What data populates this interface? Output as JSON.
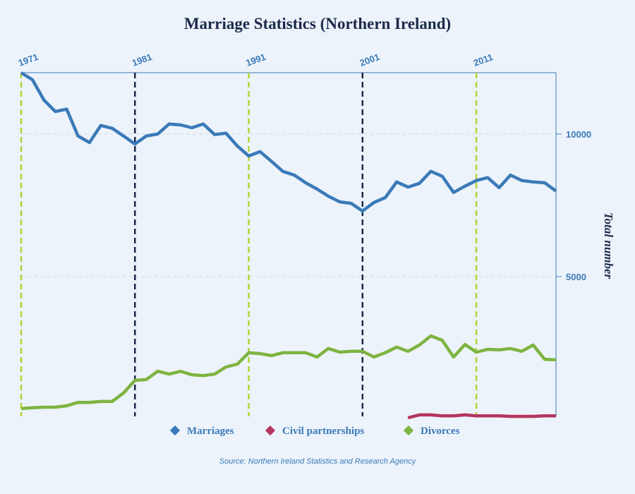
{
  "chart_data": {
    "type": "line",
    "title": "Marriage Statistics (Northern Ireland)",
    "y_label": "Total number",
    "source": "Source:  Northern Ireland Statistics and Research Agency",
    "x": [
      1971,
      1972,
      1973,
      1974,
      1975,
      1976,
      1977,
      1978,
      1979,
      1980,
      1981,
      1982,
      1983,
      1984,
      1985,
      1986,
      1987,
      1988,
      1989,
      1990,
      1991,
      1992,
      1993,
      1994,
      1995,
      1996,
      1997,
      1998,
      1999,
      2000,
      2001,
      2002,
      2003,
      2004,
      2005,
      2006,
      2007,
      2008,
      2009,
      2010,
      2011,
      2012,
      2013,
      2014,
      2015,
      2016,
      2017,
      2018
    ],
    "series": [
      {
        "name": "Marriages",
        "color": "#3a7ab8",
        "values": [
          12150,
          11900,
          11190,
          10790,
          10870,
          9930,
          9700,
          10300,
          10200,
          9930,
          9650,
          9930,
          10000,
          10350,
          10320,
          10220,
          10350,
          9980,
          10030,
          9580,
          9230,
          9380,
          9040,
          8690,
          8560,
          8290,
          8070,
          7820,
          7620,
          7570,
          7300,
          7600,
          7770,
          8320,
          8140,
          8270,
          8690,
          8520,
          7950,
          8170,
          8370,
          8470,
          8120,
          8560,
          8370,
          8320,
          8290,
          8000
        ]
      },
      {
        "name": "Civil partnerships",
        "color": "#b5365e",
        "values": [
          null,
          null,
          null,
          null,
          null,
          null,
          null,
          null,
          null,
          null,
          null,
          null,
          null,
          null,
          null,
          null,
          null,
          null,
          null,
          null,
          null,
          null,
          null,
          null,
          null,
          null,
          null,
          null,
          null,
          null,
          null,
          null,
          null,
          null,
          50,
          150,
          150,
          120,
          120,
          150,
          120,
          120,
          120,
          100,
          100,
          100,
          120,
          120
        ]
      },
      {
        "name": "Divorces",
        "color": "#7db440",
        "values": [
          370,
          400,
          420,
          420,
          470,
          590,
          590,
          620,
          620,
          920,
          1360,
          1390,
          1680,
          1580,
          1680,
          1560,
          1530,
          1580,
          1830,
          1930,
          2330,
          2300,
          2230,
          2330,
          2330,
          2330,
          2180,
          2480,
          2350,
          2380,
          2380,
          2180,
          2330,
          2530,
          2380,
          2600,
          2920,
          2770,
          2180,
          2620,
          2350,
          2450,
          2430,
          2480,
          2380,
          2600,
          2100,
          2080
        ]
      }
    ],
    "xlim": [
      1971,
      2018
    ],
    "xticks": [
      1971,
      1981,
      1991,
      2001,
      2011
    ],
    "xtick_line_colors": [
      "#b5d334",
      "#1b2a4a",
      "#b5d334",
      "#1b2a4a",
      "#b5d334"
    ],
    "ylim": [
      0,
      12150
    ],
    "yticks": [
      5000,
      10000
    ],
    "grid": true
  }
}
